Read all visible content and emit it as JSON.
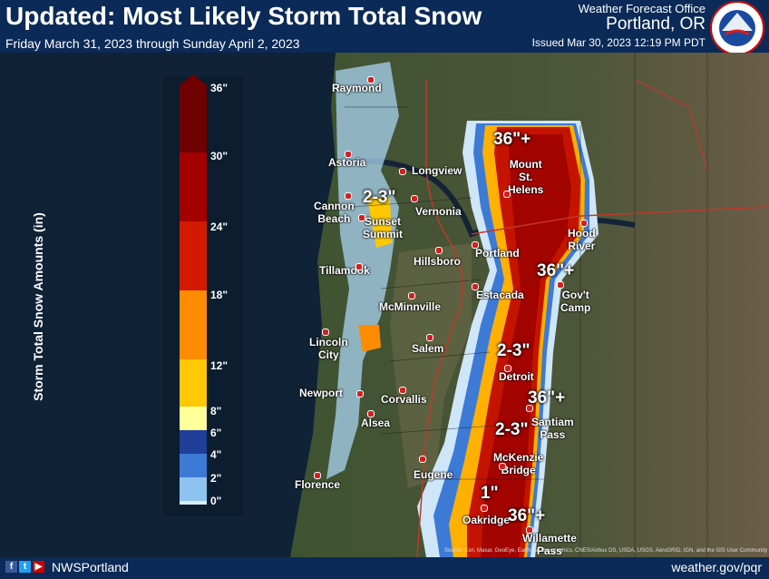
{
  "header": {
    "title": "Updated: Most Likely Storm Total Snow",
    "subtitle": "Friday March 31, 2023 through Sunday April 2, 2023",
    "office_label": "Weather Forecast Office",
    "office_city": "Portland, OR",
    "issued": "Issued Mar 30, 2023 12:19 PM PDT",
    "logo_text": "NATIONAL WEATHER SERVICE"
  },
  "legend": {
    "title": "Storm Total Snow Amounts (in)",
    "ticks": [
      "36\"",
      "30\"",
      "24\"",
      "18\"",
      "12\"",
      "8\"",
      "6\"",
      "4\"",
      "2\"",
      "0\""
    ],
    "colors": [
      "#6e0000",
      "#a40000",
      "#d21a00",
      "#ff8c00",
      "#ffc800",
      "#ffff99",
      "#1f3f99",
      "#3d7ad6",
      "#8fc3ef",
      "#d8ecfb"
    ]
  },
  "cities": [
    {
      "name": "Raymond"
    },
    {
      "name": "Astoria"
    },
    {
      "name": "Longview"
    },
    {
      "name": "Cannon\nBeach"
    },
    {
      "name": "Vernonia"
    },
    {
      "name": "Sunset\nSummit"
    },
    {
      "name": "Hillsboro"
    },
    {
      "name": "Portland"
    },
    {
      "name": "Hood\nRiver"
    },
    {
      "name": "Tillamook"
    },
    {
      "name": "Estacada"
    },
    {
      "name": "Gov't\nCamp"
    },
    {
      "name": "McMinnville"
    },
    {
      "name": "Lincoln\nCity"
    },
    {
      "name": "Salem"
    },
    {
      "name": "Detroit"
    },
    {
      "name": "Newport"
    },
    {
      "name": "Corvallis"
    },
    {
      "name": "Alsea"
    },
    {
      "name": "Santiam\nPass"
    },
    {
      "name": "McKenzie\nBridge"
    },
    {
      "name": "Florence"
    },
    {
      "name": "Eugene"
    },
    {
      "name": "Oakridge"
    },
    {
      "name": "Willamette\nPass"
    },
    {
      "name": "Mount\nSt.\nHelens"
    }
  ],
  "annotations": [
    "36\"+",
    "36\"+",
    "36\"+",
    "36\"+",
    "2-3\"",
    "2-3\"",
    "2-3\"",
    "1\""
  ],
  "footer": {
    "handle": "NWSPortland",
    "website": "weather.gov/pqr",
    "source": "Source: Esri, Maxar, GeoEye, Earthstar Geographics, CNES/Airbus DS, USDA, USGS, AeroGRID, IGN, and the GIS User Community"
  }
}
